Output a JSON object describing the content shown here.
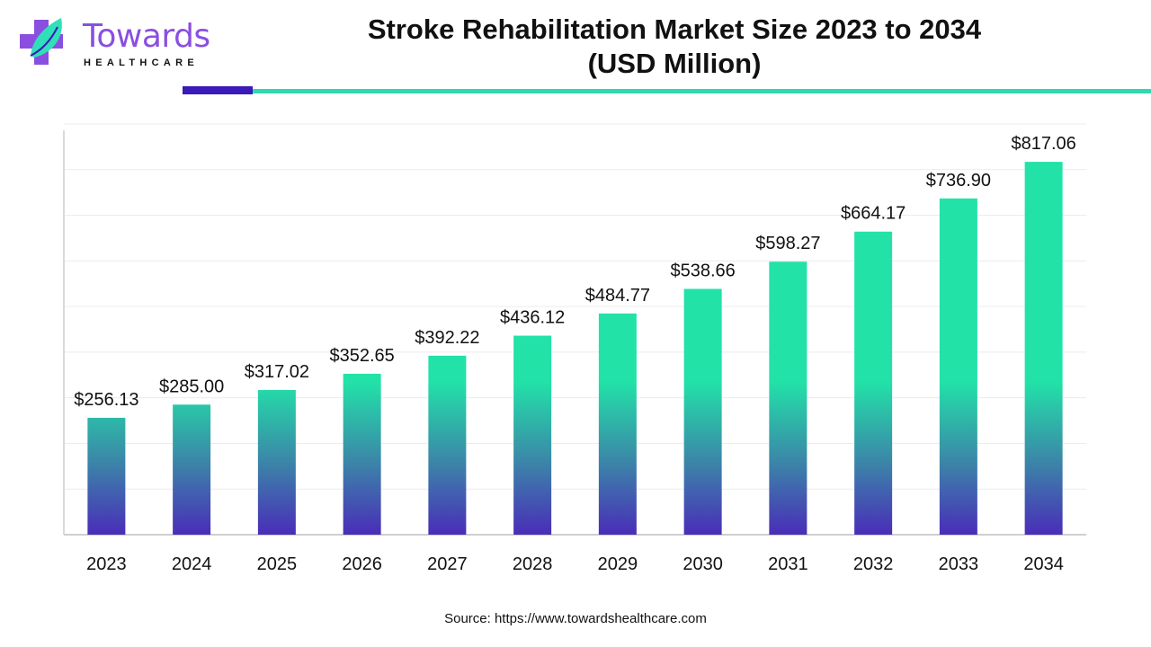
{
  "header": {
    "title_line1": "Stroke Rehabilitation Market Size 2023 to 2034",
    "title_line2": "(USD Million)"
  },
  "logo": {
    "word": "Towards",
    "sub": "HEALTHCARE"
  },
  "colors": {
    "bar_top": "#22e2a8",
    "bar_bottom": "#4a2db8",
    "accent_dark": "#3a1ab8",
    "accent_teal": "#2fd8b0"
  },
  "chart_data": {
    "type": "bar",
    "title": "Stroke Rehabilitation Market Size 2023 to 2034 (USD Million)",
    "categories": [
      "2023",
      "2024",
      "2025",
      "2026",
      "2027",
      "2028",
      "2029",
      "2030",
      "2031",
      "2032",
      "2033",
      "2034"
    ],
    "values": [
      256.13,
      285.0,
      317.02,
      352.65,
      392.22,
      436.12,
      484.77,
      538.66,
      598.27,
      664.17,
      736.9,
      817.06
    ],
    "data_labels": [
      "$256.13",
      "$285.00",
      "$317.02",
      "$352.65",
      "$392.22",
      "$436.12",
      "$484.77",
      "$538.66",
      "$598.27",
      "$664.17",
      "$736.90",
      "$817.06"
    ],
    "ylim": [
      0,
      900
    ],
    "grid": true,
    "legend": "none"
  },
  "footer": {
    "source": "Source: https://www.towardshealthcare.com"
  }
}
